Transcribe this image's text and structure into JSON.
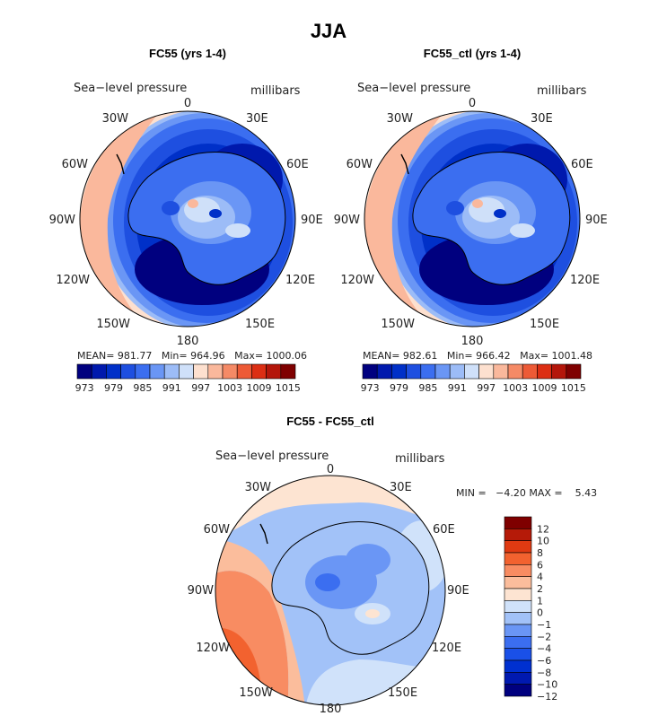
{
  "main_title": "JJA",
  "colors": {
    "abs_scale": [
      "#00007f",
      "#0019ad",
      "#0030c8",
      "#1e4fe0",
      "#3b6ef0",
      "#6a96f5",
      "#9cbcf7",
      "#cfe0f9",
      "#fde0cf",
      "#fab89c",
      "#f58a66",
      "#ed5a36",
      "#dc2e13",
      "#b4160a",
      "#7f0000"
    ],
    "diff_scale": [
      "#00007f",
      "#0019b0",
      "#0030d0",
      "#1a50e8",
      "#3b6ef0",
      "#6a96f5",
      "#a2c2f8",
      "#d0e2fa",
      "#fde4d2",
      "#fbbd9c",
      "#f88c62",
      "#f2622f",
      "#e03a12",
      "#b51a08",
      "#7f0000"
    ],
    "coast": "#000000"
  },
  "panels": [
    {
      "title": "FC55 (yrs 1-4)",
      "field_label": "Sea−level pressure",
      "units_label": "millibars",
      "stats": "MEAN= 981.77   Min= 964.96   Max= 1000.06",
      "colorbar_ticks": [
        "973",
        "979",
        "985",
        "991",
        "997",
        "1003",
        "1009",
        "1015"
      ]
    },
    {
      "title": "FC55_ctl (yrs 1-4)",
      "field_label": "Sea−level pressure",
      "units_label": "millibars",
      "stats": "MEAN= 982.61   Min= 966.42   Max= 1001.48",
      "colorbar_ticks": [
        "973",
        "979",
        "985",
        "991",
        "997",
        "1003",
        "1009",
        "1015"
      ]
    },
    {
      "title": "FC55 - FC55_ctl",
      "field_label": "Sea−level pressure",
      "units_label": "millibars",
      "stats": "MIN =   −4.20 MAX =    5.43",
      "colorbar_ticks": [
        "12",
        "10",
        "8",
        "6",
        "4",
        "2",
        "1",
        "0",
        "−1",
        "−2",
        "−4",
        "−6",
        "−8",
        "−10",
        "−12"
      ]
    }
  ],
  "longitude_labels": [
    "0",
    "30E",
    "60E",
    "90E",
    "120E",
    "150E",
    "180",
    "150W",
    "120W",
    "90W",
    "60W",
    "30W"
  ]
}
